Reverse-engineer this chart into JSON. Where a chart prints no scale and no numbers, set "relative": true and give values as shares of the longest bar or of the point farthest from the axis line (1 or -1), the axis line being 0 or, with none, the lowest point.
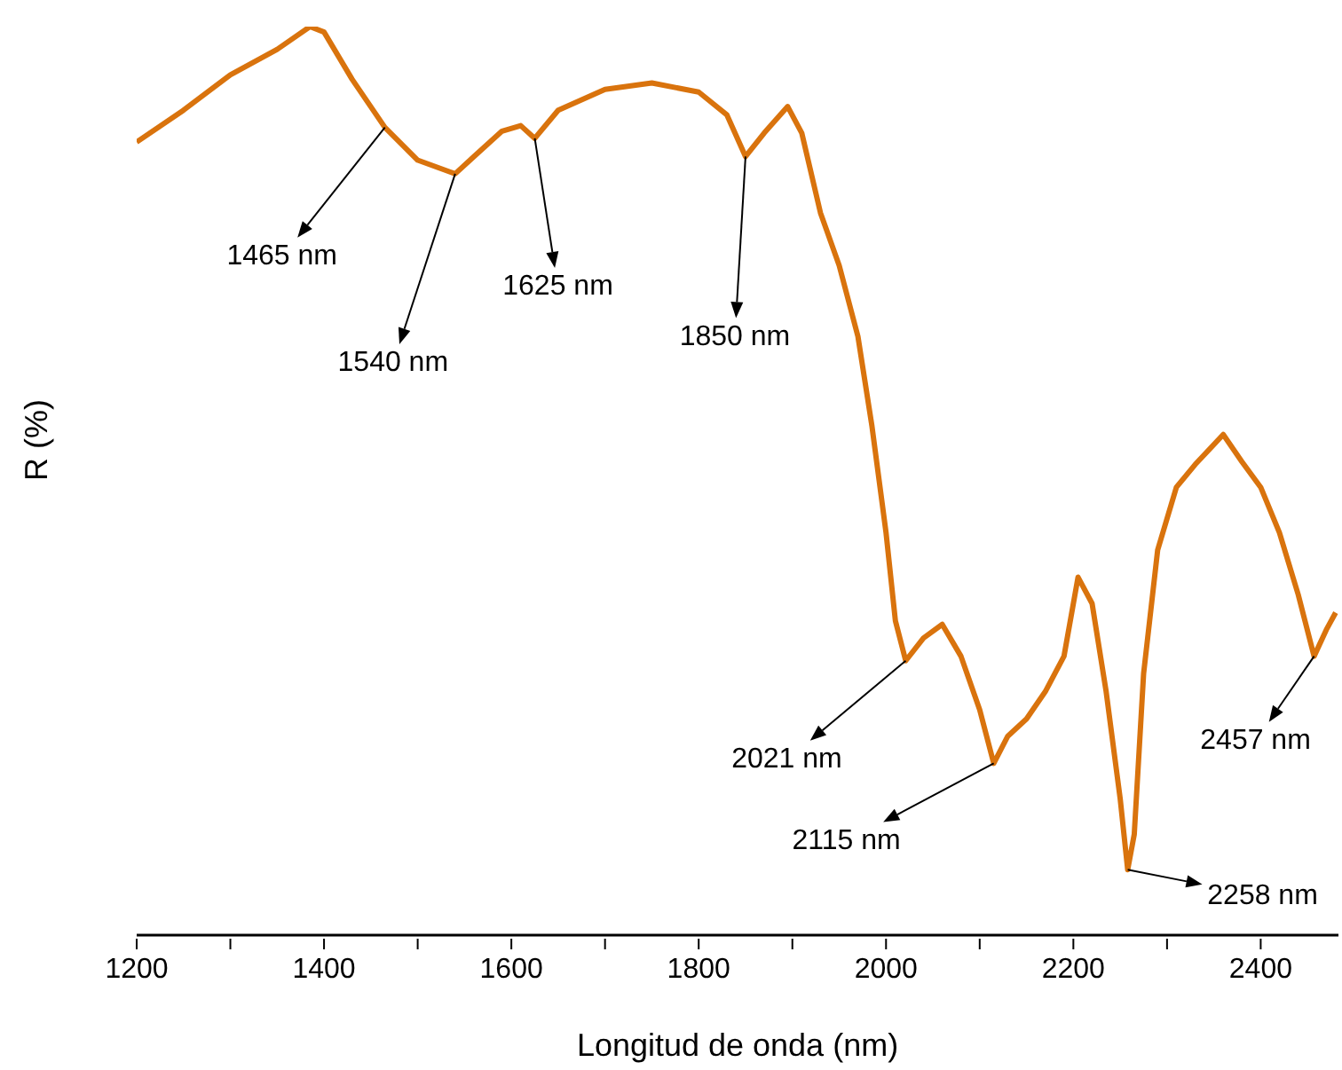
{
  "chart_data": {
    "type": "line",
    "relative": true,
    "xlabel": "Longitud de onda (nm)",
    "ylabel": "R (%)",
    "xlim": [
      1200,
      2483
    ],
    "xticks": [
      1200,
      {
        "value": 1300,
        "label": null
      },
      1400,
      {
        "value": 1500,
        "label": null
      },
      1600,
      {
        "value": 1700,
        "label": null
      },
      1800,
      {
        "value": 1900,
        "label": null
      },
      2000,
      {
        "value": 2100,
        "label": null
      },
      2200,
      {
        "value": 2300,
        "label": null
      },
      2400
    ],
    "x": [
      1200,
      1250,
      1300,
      1350,
      1385,
      1400,
      1430,
      1465,
      1500,
      1540,
      1560,
      1590,
      1610,
      1625,
      1650,
      1700,
      1750,
      1800,
      1830,
      1850,
      1870,
      1895,
      1910,
      1930,
      1950,
      1970,
      1985,
      2000,
      2010,
      2021,
      2040,
      2060,
      2080,
      2100,
      2115,
      2130,
      2150,
      2170,
      2190,
      2205,
      2220,
      2235,
      2250,
      2258,
      2265,
      2275,
      2290,
      2310,
      2330,
      2360,
      2380,
      2400,
      2420,
      2440,
      2457,
      2470,
      2480
    ],
    "series": [
      {
        "color": "#d9730d",
        "values": [
          0.873,
          0.908,
          0.947,
          0.975,
          1.0,
          0.994,
          0.942,
          0.889,
          0.853,
          0.838,
          0.857,
          0.885,
          0.891,
          0.877,
          0.908,
          0.931,
          0.938,
          0.928,
          0.903,
          0.857,
          0.883,
          0.912,
          0.883,
          0.795,
          0.737,
          0.659,
          0.56,
          0.443,
          0.346,
          0.302,
          0.327,
          0.342,
          0.307,
          0.248,
          0.189,
          0.219,
          0.238,
          0.268,
          0.307,
          0.394,
          0.365,
          0.268,
          0.15,
          0.072,
          0.111,
          0.288,
          0.424,
          0.493,
          0.518,
          0.551,
          0.521,
          0.493,
          0.443,
          0.375,
          0.307,
          0.336,
          0.355
        ]
      }
    ],
    "annotations": [
      {
        "text": "1465 nm",
        "x": 1465,
        "y": 0.889
      },
      {
        "text": "1540 nm",
        "x": 1540,
        "y": 0.838
      },
      {
        "text": "1625 nm",
        "x": 1625,
        "y": 0.877
      },
      {
        "text": "1850 nm",
        "x": 1850,
        "y": 0.857
      },
      {
        "text": "2021 nm",
        "x": 2021,
        "y": 0.302
      },
      {
        "text": "2115 nm",
        "x": 2115,
        "y": 0.189
      },
      {
        "text": "2258 nm",
        "x": 2258,
        "y": 0.072
      },
      {
        "text": "2457 nm",
        "x": 2457,
        "y": 0.307
      }
    ]
  }
}
